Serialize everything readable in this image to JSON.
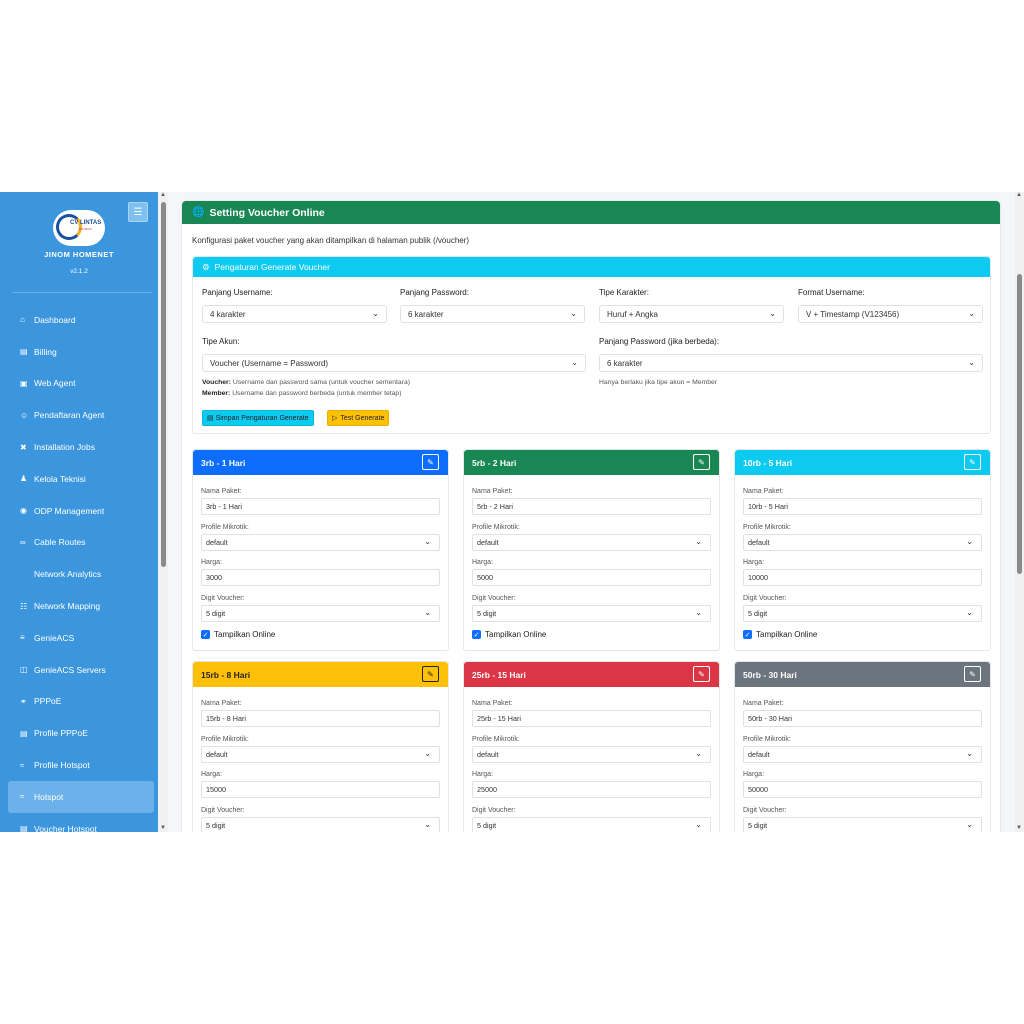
{
  "sidebar": {
    "toggle_icon": "menu-icon",
    "logo_text": "CV LINTAS",
    "logo_sub": "BUTRON",
    "brand": "JINOM HOMENET",
    "version": "v2.1.2",
    "items": [
      {
        "label": "Dashboard",
        "icon": "home-icon"
      },
      {
        "label": "Billing",
        "icon": "billing-icon"
      },
      {
        "label": "Web Agent",
        "icon": "agent-icon"
      },
      {
        "label": "Pendaftaran Agent",
        "icon": "user-plus-icon"
      },
      {
        "label": "Installation Jobs",
        "icon": "tools-icon"
      },
      {
        "label": "Kelola Teknisi",
        "icon": "users-icon"
      },
      {
        "label": "ODP Management",
        "icon": "broadcast-icon"
      },
      {
        "label": "Cable Routes",
        "icon": "diagram-icon"
      },
      {
        "label": "Network Analytics",
        "icon": ""
      },
      {
        "label": "Network Mapping",
        "icon": "map-icon"
      },
      {
        "label": "GenieACS",
        "icon": "router-icon"
      },
      {
        "label": "GenieACS Servers",
        "icon": "server-icon"
      },
      {
        "label": "PPPoE",
        "icon": "plug-icon"
      },
      {
        "label": "Profile PPPoE",
        "icon": "profile-icon"
      },
      {
        "label": "Profile Hotspot",
        "icon": "wifi-icon"
      },
      {
        "label": "Hotspot",
        "icon": "wifi-icon"
      },
      {
        "label": "Voucher Hotspot",
        "icon": "ticket-icon"
      }
    ]
  },
  "main": {
    "title": "Setting Voucher Online",
    "title_icon": "globe-icon",
    "description": "Konfigurasi paket voucher yang akan ditampilkan di halaman publik (/voucher)"
  },
  "generate": {
    "header": "Pengaturan Generate Voucher",
    "header_icon": "gear-icon",
    "username_length": {
      "label": "Panjang Username:",
      "value": "4 karakter"
    },
    "password_length": {
      "label": "Panjang Password:",
      "value": "6 karakter"
    },
    "char_type": {
      "label": "Tipe Karakter:",
      "value": "Huruf + Angka"
    },
    "username_format": {
      "label": "Format Username:",
      "value": "V + Timestamp (V123456)"
    },
    "account_type": {
      "label": "Tipe Akun:",
      "value": "Voucher (Username = Password)"
    },
    "member_password_length": {
      "label": "Panjang Password (jika berbeda):",
      "value": "6 karakter"
    },
    "hint_voucher_title": "Voucher:",
    "hint_voucher": "Username dan password sama (untuk voucher sementara)",
    "hint_member_title": "Member:",
    "hint_member": "Username dan password berbeda (untuk member tetap)",
    "hint_password": "Hanya berlaku jika tipe akun = Member",
    "save_button": "Simpan Pengaturan Generate",
    "test_button": "Test Generate"
  },
  "labels": {
    "name": "Nama Paket:",
    "profile": "Profile Mikrotik:",
    "price": "Harga:",
    "digit": "Digit Voucher:",
    "show_online": "Tampilkan Online"
  },
  "packages": [
    {
      "title": "3rb - 1 Hari",
      "name": "3rb - 1 Hari",
      "profile": "default",
      "price": "3000",
      "digit": "5 digit",
      "color": "#0d6efd"
    },
    {
      "title": "5rb - 2 Hari",
      "name": "5rb - 2 Hari",
      "profile": "default",
      "price": "5000",
      "digit": "5 digit",
      "color": "#198754"
    },
    {
      "title": "10rb - 5 Hari",
      "name": "10rb - 5 Hari",
      "profile": "default",
      "price": "10000",
      "digit": "5 digit",
      "color": "#0dcaf0"
    },
    {
      "title": "15rb - 8 Hari",
      "name": "15rb - 8 Hari",
      "profile": "default",
      "price": "15000",
      "digit": "5 digit",
      "color": "#ffc107"
    },
    {
      "title": "25rb - 15 Hari",
      "name": "25rb - 15 Hari",
      "profile": "default",
      "price": "25000",
      "digit": "5 digit",
      "color": "#dc3545"
    },
    {
      "title": "50rb - 30 Hari",
      "name": "50rb - 30 Hari",
      "profile": "default",
      "price": "50000",
      "digit": "5 digit",
      "color": "#6c757d"
    }
  ]
}
